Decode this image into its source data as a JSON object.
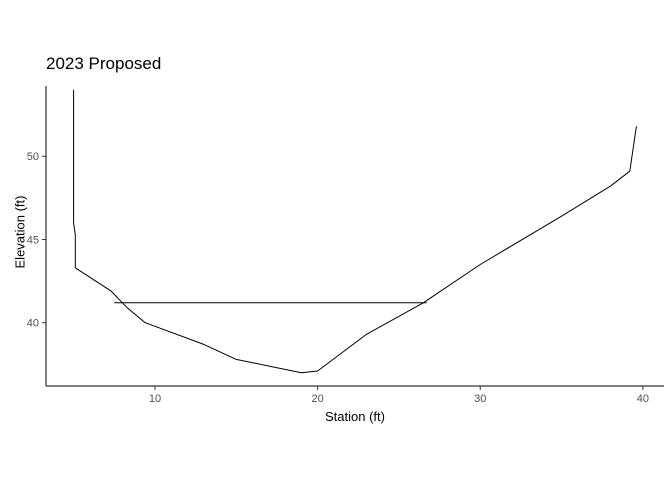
{
  "chart_data": {
    "type": "line",
    "title": "2023 Proposed",
    "xlabel": "Station (ft)",
    "ylabel": "Elevation (ft)",
    "xlim": [
      3.3,
      41.3
    ],
    "ylim": [
      36.2,
      54.7
    ],
    "xticks": [
      10,
      20,
      30,
      40
    ],
    "yticks": [
      40,
      45,
      50
    ],
    "grid": false,
    "series": [
      {
        "name": "",
        "color": "#000000",
        "x": [
          5.0,
          5.0,
          5.1,
          5.1,
          7.3,
          8.3,
          9.4,
          13.0,
          15.0,
          19.0,
          20.0,
          23.0,
          26.5,
          30.0,
          35.0,
          38.0,
          39.2,
          39.6
        ],
        "y": [
          54.0,
          46.0,
          45.3,
          43.3,
          41.9,
          40.9,
          40.0,
          38.7,
          37.8,
          37.0,
          37.1,
          39.3,
          41.2,
          43.5,
          46.4,
          48.2,
          49.1,
          51.8
        ]
      },
      {
        "name": "",
        "color": "#000000",
        "x": [
          7.5,
          26.7
        ],
        "y": [
          41.2,
          41.2
        ]
      }
    ]
  }
}
